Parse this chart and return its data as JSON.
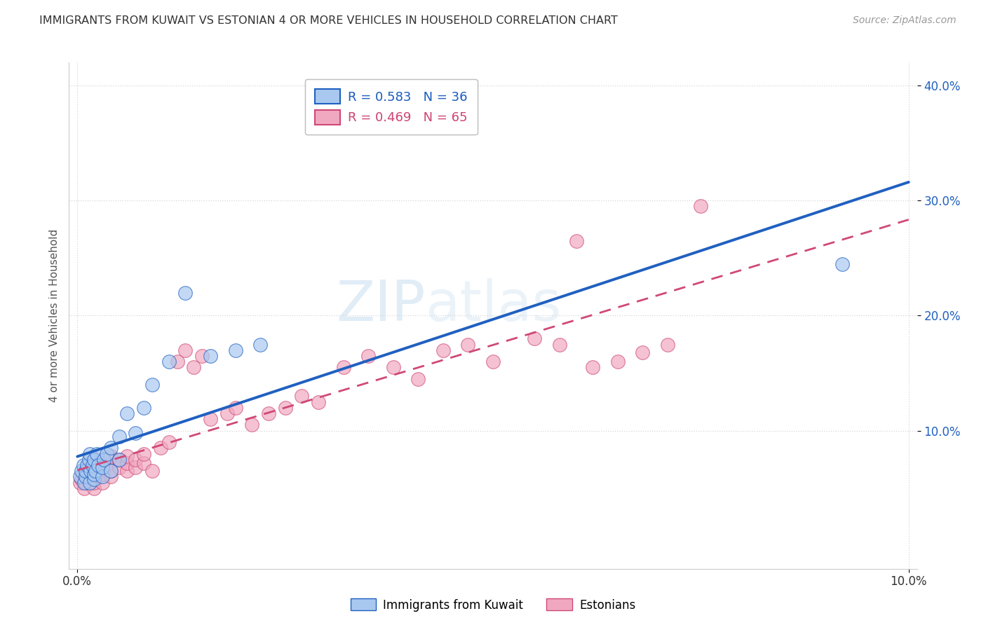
{
  "title": "IMMIGRANTS FROM KUWAIT VS ESTONIAN 4 OR MORE VEHICLES IN HOUSEHOLD CORRELATION CHART",
  "source": "Source: ZipAtlas.com",
  "xlabel": "",
  "ylabel": "4 or more Vehicles in Household",
  "xlim": [
    -0.001,
    0.101
  ],
  "ylim": [
    -0.02,
    0.42
  ],
  "xticks": [
    0.0,
    0.1
  ],
  "yticks": [
    0.1,
    0.2,
    0.3,
    0.4
  ],
  "ytick_labels": [
    "10.0%",
    "20.0%",
    "30.0%",
    "40.0%"
  ],
  "xtick_labels": [
    "0.0%",
    "10.0%"
  ],
  "background_color": "#ffffff",
  "plot_background": "#ffffff",
  "grid_color": "#cccccc",
  "blue_color": "#a8c8f0",
  "pink_color": "#f0a8c0",
  "blue_line_color": "#2060c0",
  "pink_line_color": "#d04878",
  "legend_R_blue": "R = 0.583",
  "legend_N_blue": "N = 36",
  "legend_R_pink": "R = 0.469",
  "legend_N_pink": "N = 65",
  "legend_label_blue": "Immigrants from Kuwait",
  "legend_label_pink": "Estonians",
  "watermark_zip": "ZIP",
  "watermark_atlas": "atlas",
  "blue_scatter_x": [
    0.0003,
    0.0005,
    0.0007,
    0.0008,
    0.001,
    0.001,
    0.0012,
    0.0014,
    0.0015,
    0.0015,
    0.0016,
    0.0018,
    0.002,
    0.002,
    0.002,
    0.0022,
    0.0023,
    0.0025,
    0.003,
    0.003,
    0.0032,
    0.0035,
    0.004,
    0.004,
    0.005,
    0.005,
    0.006,
    0.007,
    0.008,
    0.009,
    0.011,
    0.013,
    0.016,
    0.019,
    0.022,
    0.092
  ],
  "blue_scatter_y": [
    0.06,
    0.065,
    0.07,
    0.055,
    0.06,
    0.065,
    0.07,
    0.075,
    0.055,
    0.08,
    0.065,
    0.07,
    0.058,
    0.062,
    0.075,
    0.065,
    0.08,
    0.07,
    0.06,
    0.068,
    0.075,
    0.08,
    0.065,
    0.085,
    0.075,
    0.095,
    0.115,
    0.098,
    0.12,
    0.14,
    0.16,
    0.22,
    0.165,
    0.17,
    0.175,
    0.245
  ],
  "pink_scatter_x": [
    0.0003,
    0.0005,
    0.0007,
    0.0008,
    0.001,
    0.001,
    0.001,
    0.0012,
    0.0014,
    0.0015,
    0.0016,
    0.0018,
    0.002,
    0.002,
    0.002,
    0.0022,
    0.0023,
    0.0025,
    0.003,
    0.003,
    0.003,
    0.0032,
    0.0035,
    0.004,
    0.004,
    0.004,
    0.005,
    0.005,
    0.006,
    0.006,
    0.006,
    0.007,
    0.007,
    0.008,
    0.008,
    0.009,
    0.01,
    0.011,
    0.012,
    0.013,
    0.014,
    0.015,
    0.016,
    0.018,
    0.019,
    0.021,
    0.023,
    0.025,
    0.027,
    0.029,
    0.032,
    0.035,
    0.038,
    0.041,
    0.044,
    0.047,
    0.05,
    0.055,
    0.058,
    0.062,
    0.065,
    0.068,
    0.071,
    0.075,
    0.06
  ],
  "pink_scatter_y": [
    0.055,
    0.058,
    0.062,
    0.05,
    0.055,
    0.06,
    0.065,
    0.068,
    0.062,
    0.072,
    0.06,
    0.065,
    0.05,
    0.055,
    0.07,
    0.06,
    0.075,
    0.065,
    0.055,
    0.062,
    0.068,
    0.075,
    0.07,
    0.06,
    0.065,
    0.078,
    0.068,
    0.075,
    0.065,
    0.072,
    0.078,
    0.068,
    0.075,
    0.072,
    0.08,
    0.065,
    0.085,
    0.09,
    0.16,
    0.17,
    0.155,
    0.165,
    0.11,
    0.115,
    0.12,
    0.105,
    0.115,
    0.12,
    0.13,
    0.125,
    0.155,
    0.165,
    0.155,
    0.145,
    0.17,
    0.175,
    0.16,
    0.18,
    0.175,
    0.155,
    0.16,
    0.168,
    0.175,
    0.295,
    0.265
  ]
}
